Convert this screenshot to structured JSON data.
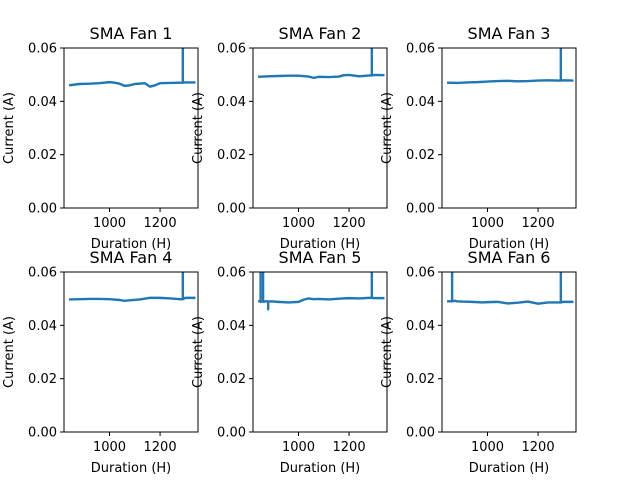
{
  "chart_data": [
    {
      "type": "line",
      "title": "SMA Fan 1",
      "xlabel": "Duration (H)",
      "ylabel": "Current (A)",
      "xlim": [
        820,
        1350
      ],
      "ylim": [
        0.0,
        0.06
      ],
      "xticks": [
        "1000",
        "1200"
      ],
      "xtick_values": [
        1000,
        1200
      ],
      "yticks": [
        "0.00",
        "0.02",
        "0.04",
        "0.06"
      ],
      "ytick_values": [
        0.0,
        0.02,
        0.04,
        0.06
      ],
      "color": "#1f77b4",
      "series": [
        {
          "x": [
            840,
            880,
            920,
            960,
            1000,
            1020,
            1040,
            1060,
            1080,
            1100,
            1140,
            1160,
            1180,
            1200,
            1240,
            1280,
            1290,
            1290,
            1290,
            1300,
            1340
          ],
          "values": [
            0.046,
            0.0465,
            0.0466,
            0.0468,
            0.0472,
            0.047,
            0.0466,
            0.0458,
            0.046,
            0.0465,
            0.0468,
            0.0455,
            0.046,
            0.0468,
            0.0469,
            0.047,
            0.047,
            0.06,
            0.047,
            0.0471,
            0.0471
          ]
        }
      ]
    },
    {
      "type": "line",
      "title": "SMA Fan 2",
      "xlabel": "Duration (H)",
      "ylabel": "Current (A)",
      "xlim": [
        820,
        1350
      ],
      "ylim": [
        0.0,
        0.06
      ],
      "xticks": [
        "1000",
        "1200"
      ],
      "xtick_values": [
        1000,
        1200
      ],
      "yticks": [
        "0.00",
        "0.02",
        "0.04",
        "0.06"
      ],
      "ytick_values": [
        0.0,
        0.02,
        0.04,
        0.06
      ],
      "color": "#1f77b4",
      "series": [
        {
          "x": [
            840,
            880,
            920,
            960,
            1000,
            1040,
            1060,
            1080,
            1120,
            1160,
            1180,
            1200,
            1240,
            1280,
            1290,
            1290,
            1290,
            1300,
            1340
          ],
          "values": [
            0.0492,
            0.0494,
            0.0495,
            0.0496,
            0.0496,
            0.0493,
            0.0488,
            0.0492,
            0.0491,
            0.0493,
            0.0498,
            0.0499,
            0.0494,
            0.0497,
            0.0497,
            0.06,
            0.0497,
            0.0499,
            0.0498
          ]
        }
      ]
    },
    {
      "type": "line",
      "title": "SMA Fan 3",
      "xlabel": "Duration (H)",
      "ylabel": "Current (A)",
      "xlim": [
        820,
        1350
      ],
      "ylim": [
        0.0,
        0.06
      ],
      "xticks": [
        "1000",
        "1200"
      ],
      "xtick_values": [
        1000,
        1200
      ],
      "yticks": [
        "0.00",
        "0.02",
        "0.04",
        "0.06"
      ],
      "ytick_values": [
        0.0,
        0.02,
        0.04,
        0.06
      ],
      "color": "#1f77b4",
      "series": [
        {
          "x": [
            840,
            880,
            920,
            960,
            1000,
            1040,
            1080,
            1120,
            1160,
            1200,
            1240,
            1280,
            1290,
            1290,
            1290,
            1300,
            1340
          ],
          "values": [
            0.047,
            0.0469,
            0.0471,
            0.0472,
            0.0474,
            0.0476,
            0.0477,
            0.0475,
            0.0476,
            0.0478,
            0.0479,
            0.0478,
            0.0478,
            0.06,
            0.0478,
            0.0479,
            0.0478
          ]
        }
      ]
    },
    {
      "type": "line",
      "title": "SMA Fan 4",
      "xlabel": "Duration (H)",
      "ylabel": "Current (A)",
      "xlim": [
        820,
        1350
      ],
      "ylim": [
        0.0,
        0.06
      ],
      "xticks": [
        "1000",
        "1200"
      ],
      "xtick_values": [
        1000,
        1200
      ],
      "yticks": [
        "0.00",
        "0.02",
        "0.04",
        "0.06"
      ],
      "ytick_values": [
        0.0,
        0.02,
        0.04,
        0.06
      ],
      "color": "#1f77b4",
      "series": [
        {
          "x": [
            840,
            880,
            920,
            960,
            1000,
            1040,
            1060,
            1080,
            1120,
            1160,
            1200,
            1240,
            1280,
            1290,
            1290,
            1290,
            1300,
            1340
          ],
          "values": [
            0.0497,
            0.0498,
            0.0499,
            0.0499,
            0.0498,
            0.0495,
            0.0492,
            0.0494,
            0.0497,
            0.0503,
            0.0503,
            0.0501,
            0.0498,
            0.0498,
            0.06,
            0.0498,
            0.0503,
            0.0503
          ]
        }
      ]
    },
    {
      "type": "line",
      "title": "SMA Fan 5",
      "xlabel": "Duration (H)",
      "ylabel": "Current (A)",
      "xlim": [
        820,
        1350
      ],
      "ylim": [
        0.0,
        0.06
      ],
      "xticks": [
        "1000",
        "1200"
      ],
      "xtick_values": [
        1000,
        1200
      ],
      "yticks": [
        "0.00",
        "0.02",
        "0.04",
        "0.06"
      ],
      "ytick_values": [
        0.0,
        0.02,
        0.04,
        0.06
      ],
      "color": "#1f77b4",
      "series": [
        {
          "x": [
            840,
            850,
            850,
            850,
            855,
            860,
            860,
            860,
            870,
            880,
            880,
            880,
            890,
            920,
            960,
            1000,
            1020,
            1040,
            1060,
            1080,
            1120,
            1160,
            1200,
            1240,
            1280,
            1290,
            1290,
            1290,
            1300,
            1340
          ],
          "values": [
            0.049,
            0.049,
            0.06,
            0.0488,
            0.049,
            0.049,
            0.06,
            0.0488,
            0.049,
            0.049,
            0.046,
            0.0488,
            0.049,
            0.0488,
            0.0486,
            0.0488,
            0.0496,
            0.0501,
            0.0498,
            0.0499,
            0.0497,
            0.05,
            0.0502,
            0.0501,
            0.0503,
            0.0503,
            0.06,
            0.0503,
            0.0502,
            0.0502
          ]
        }
      ]
    },
    {
      "type": "line",
      "title": "SMA Fan 6",
      "xlabel": "Duration (H)",
      "ylabel": "Current (A)",
      "xlim": [
        820,
        1350
      ],
      "ylim": [
        0.0,
        0.06
      ],
      "xticks": [
        "1000",
        "1200"
      ],
      "xtick_values": [
        1000,
        1200
      ],
      "yticks": [
        "0.00",
        "0.02",
        "0.04",
        "0.06"
      ],
      "ytick_values": [
        0.0,
        0.02,
        0.04,
        0.06
      ],
      "color": "#1f77b4",
      "series": [
        {
          "x": [
            840,
            860,
            860,
            860,
            870,
            880,
            900,
            940,
            980,
            1000,
            1040,
            1080,
            1120,
            1160,
            1200,
            1240,
            1280,
            1290,
            1290,
            1290,
            1300,
            1340
          ],
          "values": [
            0.049,
            0.049,
            0.06,
            0.049,
            0.0492,
            0.049,
            0.0489,
            0.0488,
            0.0486,
            0.0487,
            0.0488,
            0.0482,
            0.0485,
            0.0489,
            0.0481,
            0.0486,
            0.0486,
            0.0486,
            0.06,
            0.0486,
            0.0488,
            0.0488
          ]
        }
      ]
    }
  ]
}
